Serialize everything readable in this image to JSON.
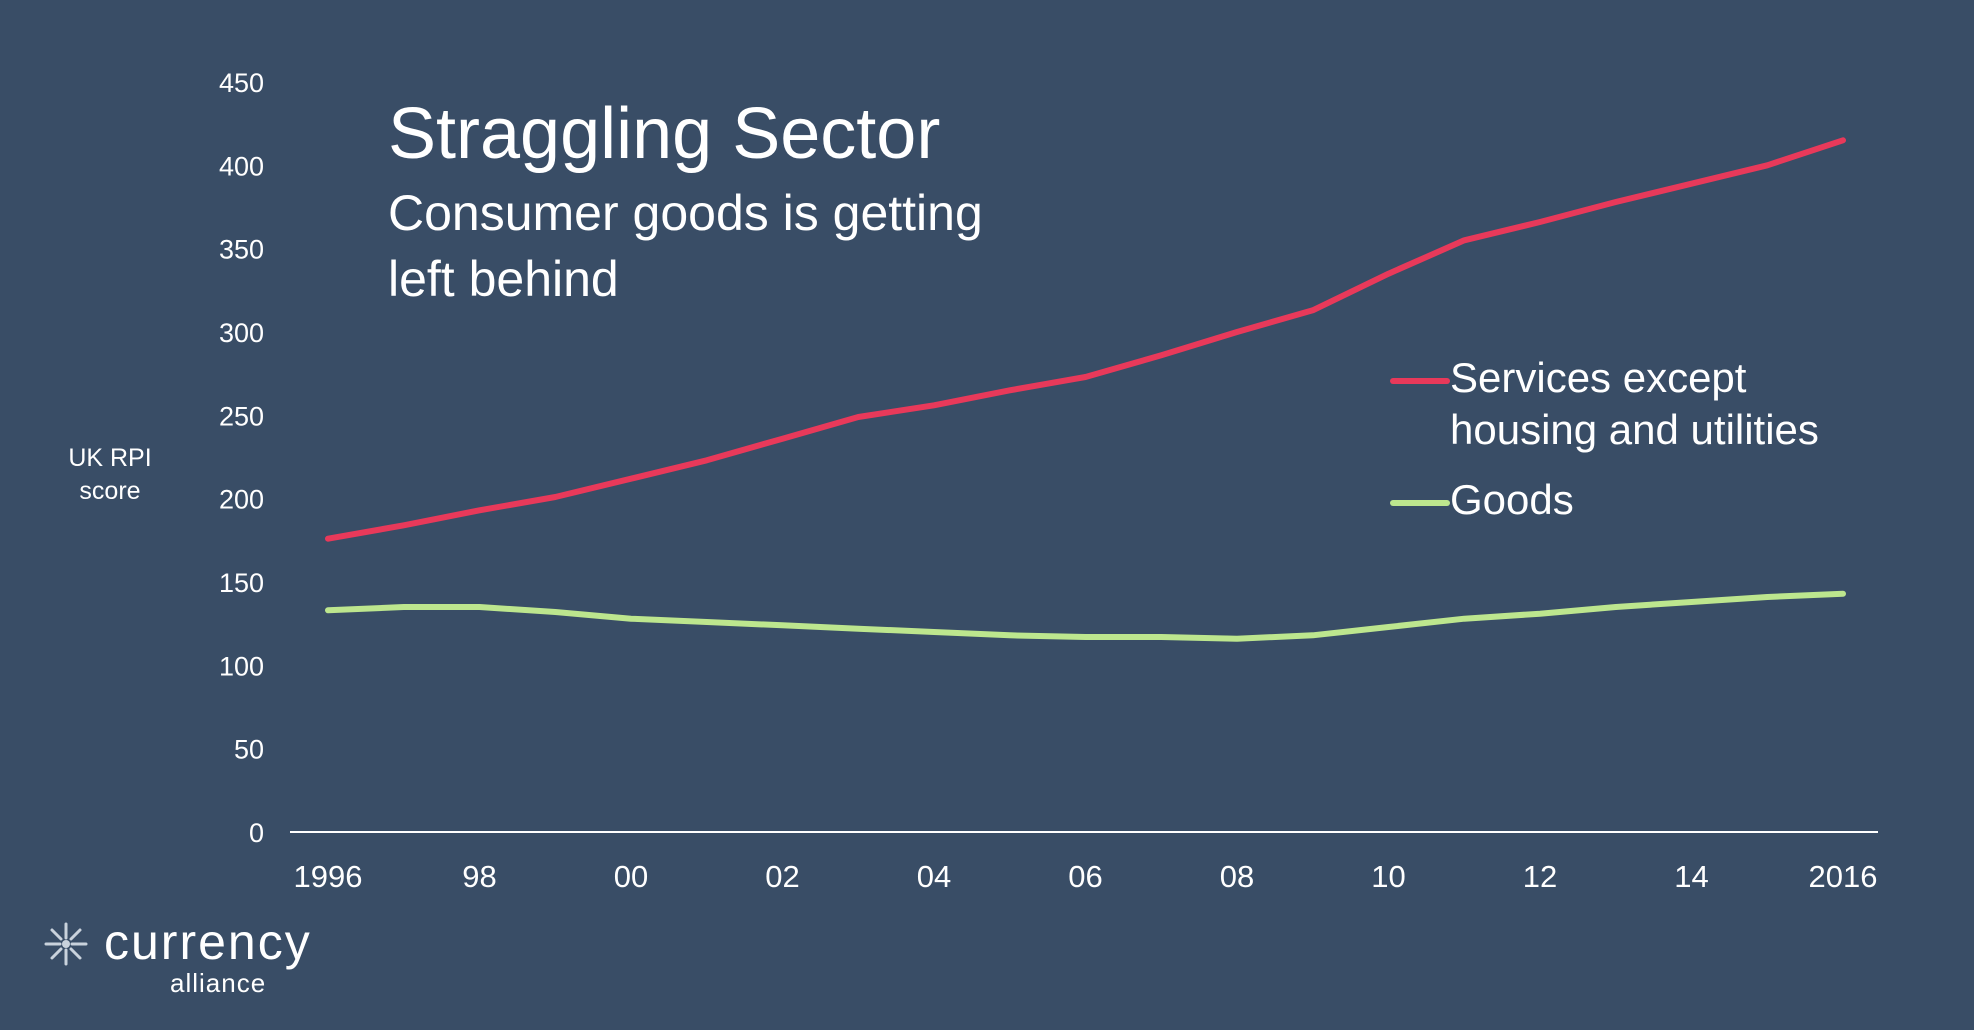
{
  "page": {
    "background": "#394d66",
    "text_color": "#ffffff"
  },
  "logo": {
    "icon": "starburst-logo-icon",
    "word": "currency",
    "sub": "alliance"
  },
  "chart_data": {
    "type": "line",
    "title": "Straggling Sector",
    "subtitle": "Consumer goods is getting left behind",
    "xlabel": "",
    "ylabel": "UK RPI score",
    "x": [
      1996,
      1997,
      1998,
      1999,
      2000,
      2001,
      2002,
      2003,
      2004,
      2005,
      2006,
      2007,
      2008,
      2009,
      2010,
      2011,
      2012,
      2013,
      2014,
      2015,
      2016
    ],
    "xlim": [
      1996,
      2016
    ],
    "ylim": [
      0,
      450
    ],
    "x_ticks": [
      1996,
      1998,
      2000,
      2002,
      2004,
      2006,
      2008,
      2010,
      2012,
      2014,
      2016
    ],
    "x_tick_labels": [
      "1996",
      "98",
      "00",
      "02",
      "04",
      "06",
      "08",
      "10",
      "12",
      "14",
      "2016"
    ],
    "y_ticks": [
      0,
      50,
      100,
      150,
      200,
      250,
      300,
      350,
      400,
      450
    ],
    "y_tick_labels": [
      "0",
      "50",
      "100",
      "150",
      "200",
      "250",
      "300",
      "350",
      "400",
      "450"
    ],
    "grid": false,
    "legend_position": "right",
    "series": [
      {
        "name": "Services except housing and utilities",
        "color": "#e8395a",
        "values": [
          176,
          184,
          193,
          201,
          212,
          223,
          236,
          249,
          256,
          265,
          273,
          286,
          300,
          313,
          335,
          355,
          366,
          378,
          389,
          400,
          415
        ]
      },
      {
        "name": "Goods",
        "color": "#bde68e",
        "values": [
          133,
          135,
          135,
          132,
          128,
          126,
          124,
          122,
          120,
          118,
          117,
          117,
          116,
          118,
          123,
          128,
          131,
          135,
          138,
          141,
          143
        ]
      }
    ]
  }
}
